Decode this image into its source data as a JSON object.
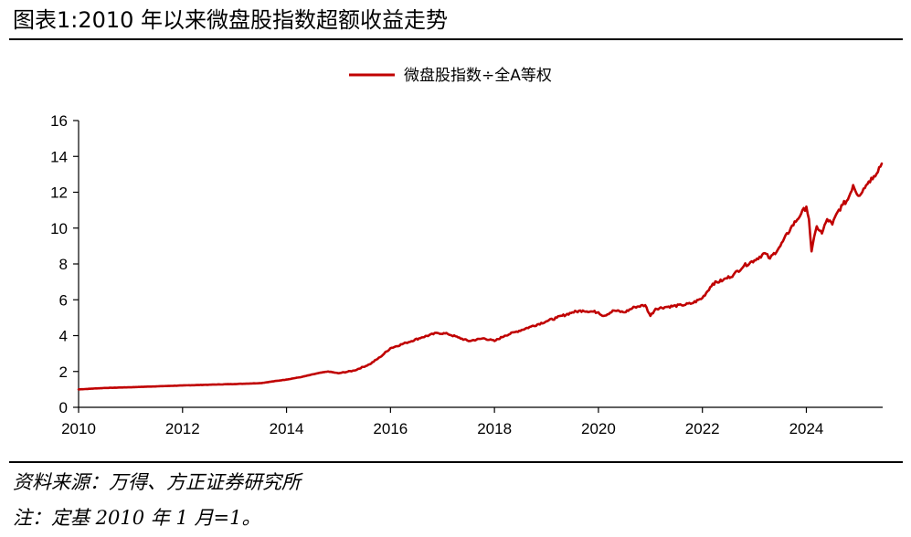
{
  "title": "图表1:2010 年以来微盘股指数超额收益走势",
  "source": "资料来源：万得、方正证券研究所",
  "note": "注：定基 2010 年 1 月=1。",
  "colors": {
    "series": "#C00000",
    "axis": "#000000"
  },
  "chart_data": {
    "type": "line",
    "title": "",
    "xlabel": "",
    "ylabel": "",
    "xlim": [
      2010,
      2025.7
    ],
    "ylim": [
      0,
      16
    ],
    "xticks": [
      2010,
      2012,
      2014,
      2016,
      2018,
      2020,
      2022,
      2024
    ],
    "yticks": [
      0,
      2,
      4,
      6,
      8,
      10,
      12,
      14,
      16
    ],
    "grid": false,
    "legend": "top-center",
    "series": [
      {
        "name": "微盘股指数÷全A等权",
        "color": "#C00000",
        "x": [
          2010.0,
          2010.5,
          2011.0,
          2011.5,
          2012.0,
          2012.5,
          2013.0,
          2013.5,
          2014.0,
          2014.3,
          2014.6,
          2014.8,
          2015.0,
          2015.3,
          2015.6,
          2015.8,
          2016.0,
          2016.3,
          2016.6,
          2016.9,
          2017.1,
          2017.3,
          2017.5,
          2017.8,
          2018.0,
          2018.2,
          2018.4,
          2018.7,
          2019.0,
          2019.2,
          2019.5,
          2019.7,
          2020.0,
          2020.1,
          2020.3,
          2020.5,
          2020.7,
          2020.9,
          2021.0,
          2021.1,
          2021.3,
          2021.6,
          2021.8,
          2022.0,
          2022.2,
          2022.4,
          2022.6,
          2022.8,
          2023.0,
          2023.2,
          2023.3,
          2023.5,
          2023.7,
          2023.9,
          2024.0,
          2024.05,
          2024.1,
          2024.2,
          2024.3,
          2024.4,
          2024.5,
          2024.6,
          2024.7,
          2024.8,
          2024.9,
          2025.0,
          2025.1,
          2025.2,
          2025.3,
          2025.45
        ],
        "values": [
          1.0,
          1.08,
          1.12,
          1.17,
          1.22,
          1.26,
          1.3,
          1.35,
          1.55,
          1.7,
          1.9,
          2.0,
          1.9,
          2.05,
          2.4,
          2.8,
          3.3,
          3.6,
          3.9,
          4.15,
          4.1,
          3.9,
          3.7,
          3.85,
          3.7,
          4.0,
          4.2,
          4.5,
          4.8,
          5.0,
          5.3,
          5.4,
          5.3,
          5.1,
          5.4,
          5.3,
          5.6,
          5.7,
          5.1,
          5.5,
          5.6,
          5.7,
          5.8,
          6.1,
          6.9,
          7.1,
          7.4,
          7.9,
          8.2,
          8.6,
          8.3,
          9.0,
          10.0,
          10.8,
          11.2,
          10.5,
          8.7,
          10.1,
          9.7,
          10.5,
          10.2,
          10.9,
          11.3,
          11.6,
          12.4,
          11.8,
          12.2,
          12.6,
          12.9,
          13.6
        ]
      }
    ]
  }
}
